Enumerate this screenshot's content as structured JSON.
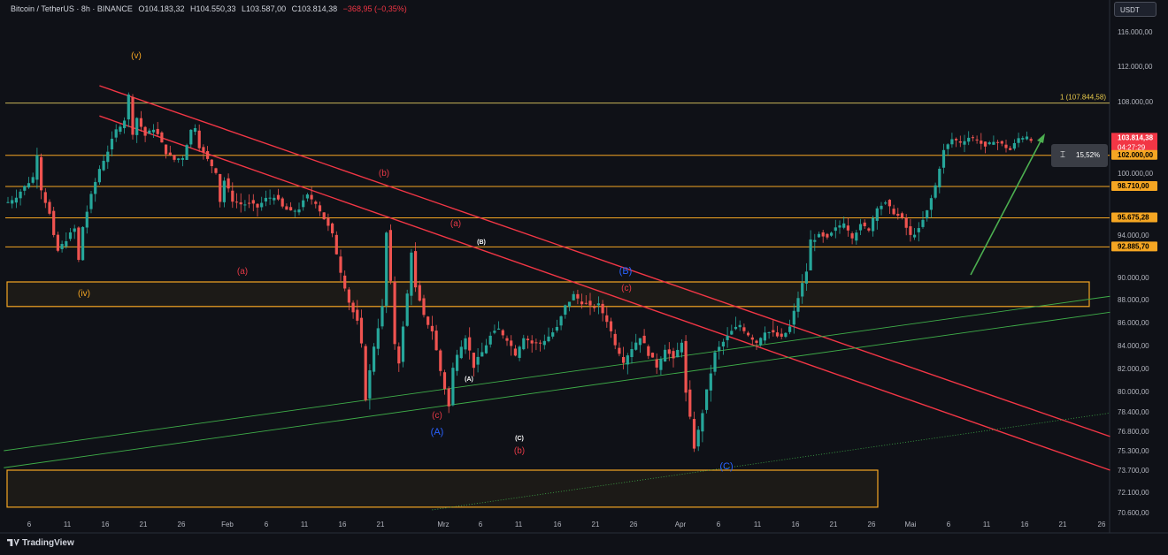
{
  "header": {
    "symbol": "Bitcoin / TetherUS · 8h · BINANCE",
    "open": "O104.183,32",
    "high": "H104.550,33",
    "low": "L103.587,00",
    "close": "C103.814,38",
    "change": "−368,95 (−0,35%)"
  },
  "currency_button": "USDT",
  "branding": "TradingView",
  "measure_label": "15,52%",
  "colors": {
    "background": "#0f1117",
    "up": "#26a69a",
    "down": "#ef5350",
    "trendline": "#f23645",
    "channel": "#3fae49",
    "level": "#f5a623",
    "wave_orange": "#f5a623",
    "wave_red": "#e53946",
    "wave_blue": "#2962ff"
  },
  "chart_data": {
    "type": "candlestick",
    "symbol": "BTCUSDT",
    "interval": "8h",
    "ylim": [
      70600,
      119000
    ],
    "y_ticks": [
      "116.000,00",
      "112.000,00",
      "108.000,00",
      "100.000,00",
      "94.000,00",
      "90.000,00",
      "88.000,00",
      "86.000,00",
      "84.000,00",
      "82.000,00",
      "80.000,00",
      "78.400,00",
      "76.800,00",
      "75.300,00",
      "73.700,00",
      "72.100,00",
      "70.600,00"
    ],
    "y_tick_values": [
      116000,
      112000,
      108000,
      100000,
      94000,
      90000,
      88000,
      86000,
      84000,
      82000,
      80000,
      78400,
      76800,
      75300,
      73700,
      72100,
      70600
    ],
    "x_ticks": [
      "6",
      "11",
      "16",
      "21",
      "26",
      "Feb",
      "6",
      "11",
      "16",
      "21",
      "Mrz",
      "6",
      "11",
      "16",
      "21",
      "26",
      "Apr",
      "6",
      "11",
      "16",
      "21",
      "26",
      "Mai",
      "6",
      "11",
      "16",
      "21",
      "26"
    ],
    "price_labels": [
      {
        "text": "103.814,38",
        "value": 103814,
        "kind": "current"
      },
      {
        "text": "04:27:29",
        "kind": "countdown"
      },
      {
        "text": "102.000,00",
        "value": 102000,
        "kind": "level"
      },
      {
        "text": "98.710,00",
        "value": 98710,
        "kind": "level"
      },
      {
        "text": "95.675,28",
        "value": 95675,
        "kind": "level"
      },
      {
        "text": "92.885,70",
        "value": 92885,
        "kind": "level"
      }
    ],
    "fib_label": "1 (107.844,58)",
    "fib_value": 107844,
    "horizontal_levels": [
      107844,
      102000,
      98710,
      95675,
      92885
    ],
    "zones": [
      {
        "top": 89600,
        "bottom": 87400
      },
      {
        "top": 73700,
        "bottom": 71000
      }
    ],
    "wave_labels": [
      {
        "text": "(v)",
        "color": "orange"
      },
      {
        "text": "(iv)",
        "color": "orange"
      },
      {
        "text": "(a)",
        "color": "red"
      },
      {
        "text": "(b)",
        "color": "red"
      },
      {
        "text": "(a)",
        "color": "red"
      },
      {
        "text": "(c)",
        "color": "red"
      },
      {
        "text": "(A)",
        "color": "blue"
      },
      {
        "text": "(B)",
        "color": "white"
      },
      {
        "text": "(A)",
        "color": "white"
      },
      {
        "text": "(C)",
        "color": "white"
      },
      {
        "text": "(b)",
        "color": "red"
      },
      {
        "text": "(B)",
        "color": "blue"
      },
      {
        "text": "(c)",
        "color": "red"
      },
      {
        "text": "(C)",
        "color": "blue"
      }
    ],
    "price_path": [
      [
        0,
        97200
      ],
      [
        2,
        97800
      ],
      [
        4,
        98700
      ],
      [
        6,
        99600
      ],
      [
        7,
        102200
      ],
      [
        8,
        98500
      ],
      [
        10,
        96000
      ],
      [
        11,
        93800
      ],
      [
        12,
        92500
      ],
      [
        14,
        93600
      ],
      [
        16,
        94600
      ],
      [
        17,
        91600
      ],
      [
        18,
        94800
      ],
      [
        20,
        97800
      ],
      [
        22,
        100500
      ],
      [
        24,
        102500
      ],
      [
        26,
        104800
      ],
      [
        28,
        106000
      ],
      [
        29,
        108700
      ],
      [
        30,
        104500
      ],
      [
        31,
        106200
      ],
      [
        33,
        104200
      ],
      [
        35,
        105000
      ],
      [
        36,
        104300
      ],
      [
        38,
        102300
      ],
      [
        40,
        101500
      ],
      [
        42,
        101800
      ],
      [
        44,
        104800
      ],
      [
        45,
        105200
      ],
      [
        46,
        103000
      ],
      [
        48,
        101500
      ],
      [
        50,
        100200
      ],
      [
        51,
        97300
      ],
      [
        52,
        99300
      ],
      [
        54,
        97400
      ],
      [
        56,
        97000
      ],
      [
        58,
        97000
      ],
      [
        60,
        96700
      ],
      [
        62,
        97500
      ],
      [
        64,
        97800
      ],
      [
        66,
        96700
      ],
      [
        68,
        96200
      ],
      [
        70,
        96600
      ],
      [
        72,
        97800
      ],
      [
        74,
        97200
      ],
      [
        76,
        95600
      ],
      [
        78,
        94000
      ],
      [
        80,
        90600
      ],
      [
        82,
        87800
      ],
      [
        84,
        86000
      ],
      [
        85,
        84000
      ],
      [
        86,
        79500
      ],
      [
        88,
        84000
      ],
      [
        90,
        87300
      ],
      [
        91,
        94200
      ],
      [
        92,
        89500
      ],
      [
        93,
        84200
      ],
      [
        94,
        82600
      ],
      [
        96,
        88500
      ],
      [
        97,
        92500
      ],
      [
        98,
        89000
      ],
      [
        100,
        86500
      ],
      [
        102,
        85300
      ],
      [
        104,
        81800
      ],
      [
        105,
        80300
      ],
      [
        106,
        78800
      ],
      [
        107,
        82000
      ],
      [
        108,
        83400
      ],
      [
        110,
        84800
      ],
      [
        112,
        82200
      ],
      [
        114,
        83400
      ],
      [
        116,
        84800
      ],
      [
        118,
        85400
      ],
      [
        120,
        84600
      ],
      [
        122,
        83300
      ],
      [
        124,
        84800
      ],
      [
        126,
        84200
      ],
      [
        128,
        84200
      ],
      [
        130,
        84800
      ],
      [
        132,
        85500
      ],
      [
        134,
        87400
      ],
      [
        136,
        88400
      ],
      [
        138,
        87800
      ],
      [
        140,
        87300
      ],
      [
        142,
        87500
      ],
      [
        144,
        86200
      ],
      [
        146,
        84200
      ],
      [
        148,
        82700
      ],
      [
        150,
        83800
      ],
      [
        152,
        84800
      ],
      [
        154,
        83300
      ],
      [
        156,
        82200
      ],
      [
        158,
        83800
      ],
      [
        160,
        82700
      ],
      [
        162,
        84400
      ],
      [
        163,
        79800
      ],
      [
        164,
        77800
      ],
      [
        165,
        75600
      ],
      [
        166,
        76800
      ],
      [
        168,
        80000
      ],
      [
        170,
        83300
      ],
      [
        172,
        84300
      ],
      [
        174,
        85200
      ],
      [
        176,
        85800
      ],
      [
        178,
        85000
      ],
      [
        180,
        84300
      ],
      [
        182,
        85300
      ],
      [
        184,
        85000
      ],
      [
        186,
        84600
      ],
      [
        188,
        85600
      ],
      [
        190,
        88200
      ],
      [
        192,
        90600
      ],
      [
        193,
        93500
      ],
      [
        195,
        93900
      ],
      [
        197,
        93600
      ],
      [
        199,
        94600
      ],
      [
        201,
        95300
      ],
      [
        203,
        93900
      ],
      [
        205,
        94900
      ],
      [
        207,
        94600
      ],
      [
        209,
        96800
      ],
      [
        211,
        97000
      ],
      [
        213,
        96200
      ],
      [
        215,
        95500
      ],
      [
        217,
        93900
      ],
      [
        219,
        94500
      ],
      [
        221,
        96300
      ],
      [
        223,
        98800
      ],
      [
        225,
        102500
      ],
      [
        227,
        103800
      ],
      [
        229,
        103500
      ],
      [
        231,
        104000
      ],
      [
        233,
        103800
      ],
      [
        235,
        102800
      ],
      [
        237,
        103700
      ],
      [
        239,
        103200
      ],
      [
        241,
        102600
      ],
      [
        243,
        103900
      ],
      [
        245,
        104200
      ],
      [
        246,
        103814
      ]
    ]
  }
}
